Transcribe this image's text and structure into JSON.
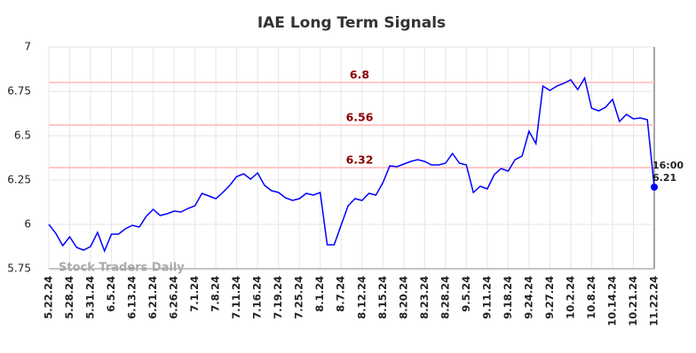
{
  "chart_data": {
    "type": "line",
    "title": "IAE Long Term Signals",
    "watermark": "Stock Traders Daily",
    "color": "#0000ff",
    "grid": true,
    "categories": [
      "5.22.24",
      null,
      null,
      "5.28.24",
      null,
      null,
      "5.31.24",
      null,
      null,
      "6.5.24",
      null,
      null,
      "6.13.24",
      null,
      null,
      "6.21.24",
      null,
      null,
      "6.26.24",
      null,
      null,
      "7.1.24",
      null,
      null,
      "7.8.24",
      null,
      null,
      "7.11.24",
      null,
      null,
      "7.16.24",
      null,
      null,
      "7.19.24",
      null,
      null,
      "7.25.24",
      null,
      null,
      "8.1.24",
      null,
      null,
      "8.7.24",
      null,
      null,
      "8.12.24",
      null,
      null,
      "8.15.24",
      null,
      null,
      "8.20.24",
      null,
      null,
      "8.23.24",
      null,
      null,
      "8.28.24",
      null,
      null,
      "9.5.24",
      null,
      null,
      "9.11.24",
      null,
      null,
      "9.18.24",
      null,
      null,
      "9.24.24",
      null,
      null,
      "9.27.24",
      null,
      null,
      "10.2.24",
      null,
      null,
      "10.8.24",
      null,
      null,
      "10.14.24",
      null,
      null,
      "10.21.24",
      null,
      null,
      "11.22.24"
    ],
    "values": [
      6.0,
      5.95,
      5.88,
      5.93,
      5.87,
      5.855,
      5.875,
      5.955,
      5.85,
      5.945,
      5.945,
      5.975,
      5.995,
      5.985,
      6.045,
      6.085,
      6.05,
      6.06,
      6.075,
      6.07,
      6.09,
      6.105,
      6.175,
      6.16,
      6.145,
      6.18,
      6.22,
      6.27,
      6.285,
      6.255,
      6.29,
      6.22,
      6.19,
      6.18,
      6.15,
      6.135,
      6.145,
      6.175,
      6.165,
      6.18,
      5.885,
      5.885,
      5.995,
      6.105,
      6.145,
      6.135,
      6.175,
      6.165,
      6.235,
      6.33,
      6.325,
      6.34,
      6.355,
      6.365,
      6.355,
      6.335,
      6.335,
      6.345,
      6.4,
      6.345,
      6.335,
      6.18,
      6.215,
      6.2,
      6.28,
      6.315,
      6.3,
      6.365,
      6.385,
      6.525,
      6.455,
      6.78,
      6.755,
      6.78,
      6.795,
      6.815,
      6.76,
      6.825,
      6.655,
      6.64,
      6.66,
      6.705,
      6.58,
      6.62,
      6.595,
      6.6,
      6.59,
      6.21
    ],
    "ylim": [
      5.75,
      7
    ],
    "yticks": [
      5.75,
      6,
      6.25,
      6.5,
      6.75,
      7
    ],
    "hlines": [
      {
        "value": 6.8,
        "color": "#ffc8c8"
      },
      {
        "value": 6.56,
        "color": "#ffc8c8"
      },
      {
        "value": 6.32,
        "color": "#ffc8c8"
      }
    ],
    "last_time": "16:00"
  }
}
